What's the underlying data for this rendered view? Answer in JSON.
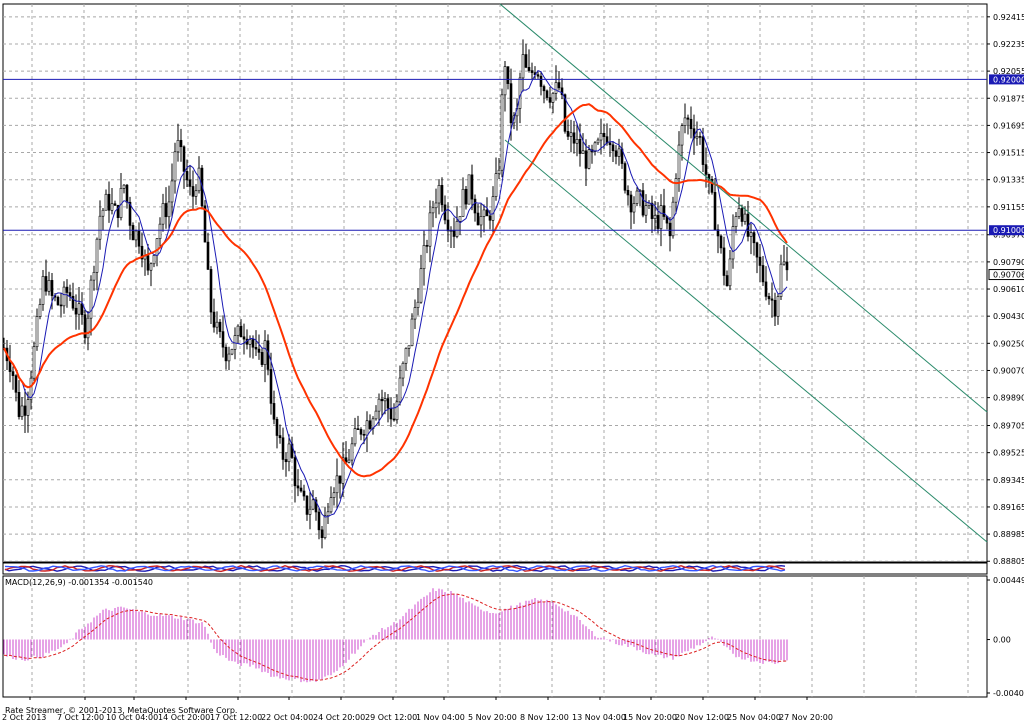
{
  "chart_data": [
    {
      "type": "candlestick",
      "panel": "price",
      "ylim": [
        0.888,
        0.925
      ],
      "y_ticks": [
        "0.92415",
        "0.92235",
        "0.92055",
        "0.91875",
        "0.91695",
        "0.91515",
        "0.91335",
        "0.91155",
        "0.90970",
        "0.90790",
        "0.90610",
        "0.90430",
        "0.90250",
        "0.90070",
        "0.89890",
        "0.89705",
        "0.89525",
        "0.89345",
        "0.89165",
        "0.88985",
        "0.88805"
      ],
      "x_ticks": [
        "2 Oct 2013",
        "7 Oct 12:00",
        "10 Oct 04:00",
        "14 Oct 20:00",
        "17 Oct 12:00",
        "22 Oct 04:00",
        "24 Oct 20:00",
        "29 Oct 12:00",
        "1 Nov 04:00",
        "5 Nov 20:00",
        "8 Nov 12:00",
        "13 Nov 04:00",
        "15 Nov 20:00",
        "20 Nov 12:00",
        "25 Nov 04:00",
        "27 Nov 20:00"
      ],
      "close_path": [
        [
          0,
          0.9022
        ],
        [
          8,
          0.901
        ],
        [
          14,
          0.898
        ],
        [
          22,
          0.8985
        ],
        [
          30,
          0.902
        ],
        [
          40,
          0.907
        ],
        [
          48,
          0.9055
        ],
        [
          56,
          0.905
        ],
        [
          64,
          0.906
        ],
        [
          74,
          0.9045
        ],
        [
          82,
          0.9035
        ],
        [
          90,
          0.908
        ],
        [
          96,
          0.911
        ],
        [
          104,
          0.912
        ],
        [
          112,
          0.911
        ],
        [
          120,
          0.913
        ],
        [
          128,
          0.91
        ],
        [
          136,
          0.9095
        ],
        [
          144,
          0.907
        ],
        [
          150,
          0.909
        ],
        [
          158,
          0.911
        ],
        [
          166,
          0.912
        ],
        [
          172,
          0.916
        ],
        [
          180,
          0.914
        ],
        [
          188,
          0.912
        ],
        [
          194,
          0.914
        ],
        [
          200,
          0.91
        ],
        [
          206,
          0.905
        ],
        [
          214,
          0.903
        ],
        [
          222,
          0.902
        ],
        [
          230,
          0.9025
        ],
        [
          238,
          0.9035
        ],
        [
          246,
          0.903
        ],
        [
          254,
          0.901
        ],
        [
          262,
          0.9025
        ],
        [
          270,
          0.897
        ],
        [
          278,
          0.895
        ],
        [
          286,
          0.8955
        ],
        [
          294,
          0.8925
        ],
        [
          302,
          0.8915
        ],
        [
          310,
          0.892
        ],
        [
          318,
          0.8895
        ],
        [
          326,
          0.893
        ],
        [
          334,
          0.8935
        ],
        [
          342,
          0.8945
        ],
        [
          350,
          0.896
        ],
        [
          358,
          0.897
        ],
        [
          366,
          0.8975
        ],
        [
          374,
          0.899
        ],
        [
          382,
          0.8985
        ],
        [
          390,
          0.8975
        ],
        [
          398,
          0.9005
        ],
        [
          406,
          0.903
        ],
        [
          414,
          0.906
        ],
        [
          422,
          0.909
        ],
        [
          430,
          0.912
        ],
        [
          436,
          0.913
        ],
        [
          442,
          0.911
        ],
        [
          450,
          0.91
        ],
        [
          458,
          0.912
        ],
        [
          466,
          0.913
        ],
        [
          474,
          0.911
        ],
        [
          482,
          0.9105
        ],
        [
          490,
          0.912
        ],
        [
          496,
          0.915
        ],
        [
          500,
          0.922
        ],
        [
          506,
          0.9175
        ],
        [
          512,
          0.917
        ],
        [
          518,
          0.9215
        ],
        [
          524,
          0.92
        ],
        [
          532,
          0.921
        ],
        [
          540,
          0.9195
        ],
        [
          548,
          0.919
        ],
        [
          556,
          0.9195
        ],
        [
          562,
          0.916
        ],
        [
          570,
          0.916
        ],
        [
          578,
          0.915
        ],
        [
          586,
          0.9145
        ],
        [
          594,
          0.9155
        ],
        [
          602,
          0.9165
        ],
        [
          610,
          0.916
        ],
        [
          618,
          0.914
        ],
        [
          626,
          0.912
        ],
        [
          634,
          0.912
        ],
        [
          642,
          0.9115
        ],
        [
          650,
          0.9105
        ],
        [
          658,
          0.911
        ],
        [
          666,
          0.9095
        ],
        [
          672,
          0.914
        ],
        [
          680,
          0.9175
        ],
        [
          688,
          0.917
        ],
        [
          696,
          0.916
        ],
        [
          704,
          0.913
        ],
        [
          712,
          0.9105
        ],
        [
          718,
          0.908
        ],
        [
          724,
          0.906
        ],
        [
          730,
          0.911
        ],
        [
          736,
          0.912
        ],
        [
          742,
          0.91
        ],
        [
          750,
          0.9085
        ],
        [
          758,
          0.907
        ],
        [
          766,
          0.9055
        ],
        [
          772,
          0.905
        ],
        [
          778,
          0.908
        ],
        [
          784,
          0.907
        ]
      ],
      "fast_ma_color": "#1a1ab4",
      "slow_ma_color": "#ff3300",
      "horizontal_levels": [
        {
          "value": 0.92,
          "label": "0.92000",
          "color": "#1a1ab4"
        },
        {
          "value": 0.91,
          "label": "0.91000",
          "color": "#1a1ab4"
        }
      ],
      "current_price": {
        "value": 0.90706,
        "label": "0.90706"
      }
    },
    {
      "type": "macd",
      "panel": "indicator",
      "label": "MACD(12,26,9) -0.001354 -0.001540",
      "ylim": [
        -0.00403,
        0.00449
      ],
      "y_ticks": [
        "0.00449",
        "0.00",
        "-0.00403"
      ],
      "histogram_color": "#cc44cc",
      "signal_color": "#dd2222",
      "histogram_path": [
        [
          0,
          -0.0012
        ],
        [
          20,
          -0.0015
        ],
        [
          40,
          -0.0012
        ],
        [
          60,
          -0.0005
        ],
        [
          80,
          0.001
        ],
        [
          100,
          0.0022
        ],
        [
          120,
          0.0024
        ],
        [
          140,
          0.002
        ],
        [
          160,
          0.0018
        ],
        [
          180,
          0.0016
        ],
        [
          200,
          0.0012
        ],
        [
          210,
          -0.0008
        ],
        [
          230,
          -0.0018
        ],
        [
          250,
          -0.002
        ],
        [
          270,
          -0.0028
        ],
        [
          290,
          -0.003
        ],
        [
          310,
          -0.0032
        ],
        [
          330,
          -0.0026
        ],
        [
          350,
          -0.001
        ],
        [
          370,
          0.0004
        ],
        [
          390,
          0.0012
        ],
        [
          410,
          0.0025
        ],
        [
          430,
          0.0038
        ],
        [
          450,
          0.0035
        ],
        [
          470,
          0.0025
        ],
        [
          490,
          0.002
        ],
        [
          510,
          0.0025
        ],
        [
          530,
          0.003
        ],
        [
          550,
          0.0028
        ],
        [
          570,
          0.0018
        ],
        [
          590,
          0.0004
        ],
        [
          610,
          -0.0002
        ],
        [
          630,
          -0.0006
        ],
        [
          650,
          -0.0012
        ],
        [
          670,
          -0.0014
        ],
        [
          690,
          -0.0006
        ],
        [
          710,
          0.0002
        ],
        [
          730,
          -0.0012
        ],
        [
          750,
          -0.0016
        ],
        [
          770,
          -0.0018
        ],
        [
          784,
          -0.0014
        ]
      ]
    }
  ],
  "footer": {
    "credit": "Rate Streamer, © 2001-2013, MetaQuotes Software Corp."
  }
}
